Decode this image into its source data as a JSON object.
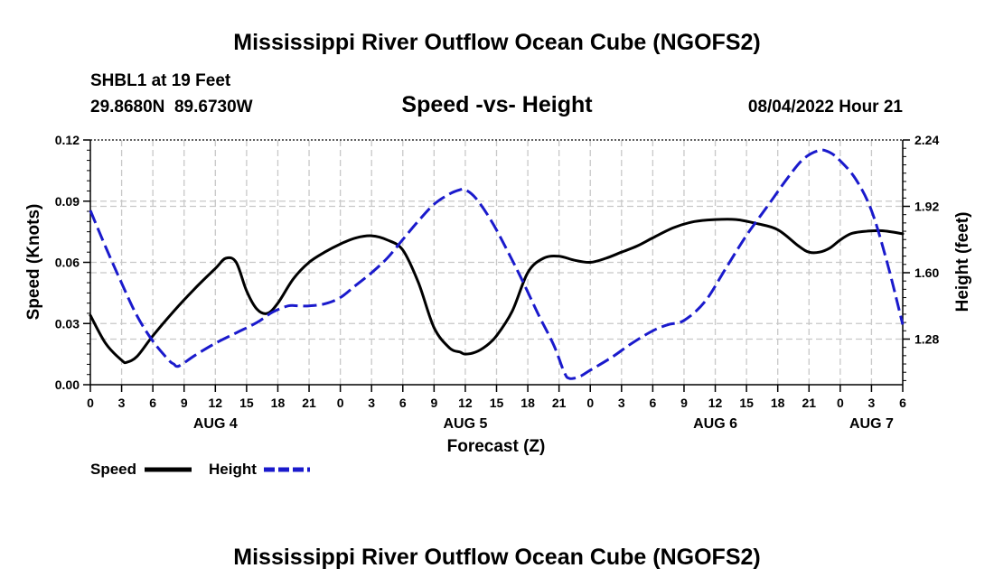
{
  "header": {
    "title": "Mississippi River Outflow Ocean Cube (NGOFS2)",
    "station": "SHBL1 at 19 Feet",
    "coords": "29.8680N  89.6730W",
    "subtitle": "Speed -vs- Height",
    "datetime": "08/04/2022 Hour 21"
  },
  "footer": {
    "title": "Mississippi River Outflow Ocean Cube (NGOFS2)"
  },
  "legend": {
    "items": [
      {
        "label": "Speed",
        "color": "#000000",
        "dash": "solid"
      },
      {
        "label": "Height",
        "color": "#1a1acc",
        "dash": "dashed"
      }
    ]
  },
  "chart_data": {
    "type": "line",
    "xlabel": "Forecast (Z)",
    "ylabel": "Speed (Knots)",
    "y2label": "Height (feet)",
    "x_unit": "hours since 2022-08-04 00Z",
    "xlim": [
      0,
      78
    ],
    "ylim": [
      0,
      0.12
    ],
    "y2lim": [
      1.06,
      2.24
    ],
    "yticks": [
      "0.00",
      "0.03",
      "0.06",
      "0.09",
      "0.12"
    ],
    "y2ticks": [
      "1.28",
      "1.60",
      "1.92",
      "2.24"
    ],
    "xtick_labels": [
      "0",
      "3",
      "6",
      "9",
      "12",
      "15",
      "18",
      "21",
      "0",
      "3",
      "6",
      "9",
      "12",
      "15",
      "18",
      "21",
      "0",
      "3",
      "6",
      "9",
      "12",
      "15",
      "18",
      "21",
      "0",
      "3",
      "6"
    ],
    "day_labels": [
      {
        "label": "AUG 4",
        "x": 12
      },
      {
        "label": "AUG 5",
        "x": 36
      },
      {
        "label": "AUG 6",
        "x": 60
      },
      {
        "label": "AUG 7",
        "x": 75
      }
    ],
    "series": [
      {
        "name": "Speed",
        "axis": "left",
        "x": [
          0,
          1.5,
          3,
          3.5,
          4.5,
          6,
          8,
          10,
          12,
          13,
          14,
          15,
          16,
          17,
          18,
          19.5,
          21,
          22.5,
          24,
          25.5,
          27,
          28.5,
          30,
          31.5,
          33,
          34.5,
          35.5,
          36,
          37,
          38,
          39,
          40.5,
          42,
          43.5,
          45,
          46.5,
          48,
          49.5,
          51,
          52.5,
          54,
          56,
          58,
          60,
          62,
          64,
          66,
          68,
          69,
          70,
          71,
          72,
          73,
          74,
          76,
          78
        ],
        "values": [
          0.034,
          0.02,
          0.012,
          0.011,
          0.014,
          0.024,
          0.036,
          0.047,
          0.057,
          0.062,
          0.06,
          0.046,
          0.037,
          0.035,
          0.04,
          0.052,
          0.06,
          0.065,
          0.069,
          0.072,
          0.073,
          0.071,
          0.066,
          0.05,
          0.028,
          0.018,
          0.016,
          0.015,
          0.016,
          0.019,
          0.024,
          0.036,
          0.055,
          0.062,
          0.063,
          0.061,
          0.06,
          0.062,
          0.065,
          0.068,
          0.072,
          0.077,
          0.08,
          0.081,
          0.081,
          0.079,
          0.076,
          0.068,
          0.065,
          0.065,
          0.067,
          0.071,
          0.074,
          0.075,
          0.0755,
          0.074
        ]
      },
      {
        "name": "Height",
        "axis": "right",
        "x": [
          0,
          1.5,
          3,
          4.5,
          6,
          7.5,
          8,
          8.5,
          10,
          12,
          14,
          16,
          17.5,
          19,
          20,
          21,
          22.5,
          24,
          25.5,
          27,
          28.5,
          30,
          31.5,
          33,
          34.5,
          35.5,
          36,
          37,
          38.5,
          40,
          41.5,
          43,
          44.5,
          45.5,
          46,
          47,
          48,
          50,
          52,
          54,
          55.5,
          57,
          59,
          61,
          63,
          65,
          67,
          68.5,
          70,
          71,
          72,
          73.5,
          75,
          76.5,
          78
        ],
        "values": [
          1.9,
          1.72,
          1.55,
          1.39,
          1.27,
          1.18,
          1.16,
          1.15,
          1.2,
          1.26,
          1.31,
          1.36,
          1.41,
          1.44,
          1.44,
          1.44,
          1.45,
          1.48,
          1.54,
          1.6,
          1.67,
          1.76,
          1.85,
          1.93,
          1.98,
          2.0,
          2.0,
          1.96,
          1.85,
          1.71,
          1.56,
          1.4,
          1.25,
          1.12,
          1.09,
          1.1,
          1.13,
          1.19,
          1.26,
          1.32,
          1.35,
          1.37,
          1.46,
          1.62,
          1.78,
          1.92,
          2.06,
          2.15,
          2.19,
          2.18,
          2.14,
          2.05,
          1.9,
          1.65,
          1.35
        ]
      }
    ]
  }
}
